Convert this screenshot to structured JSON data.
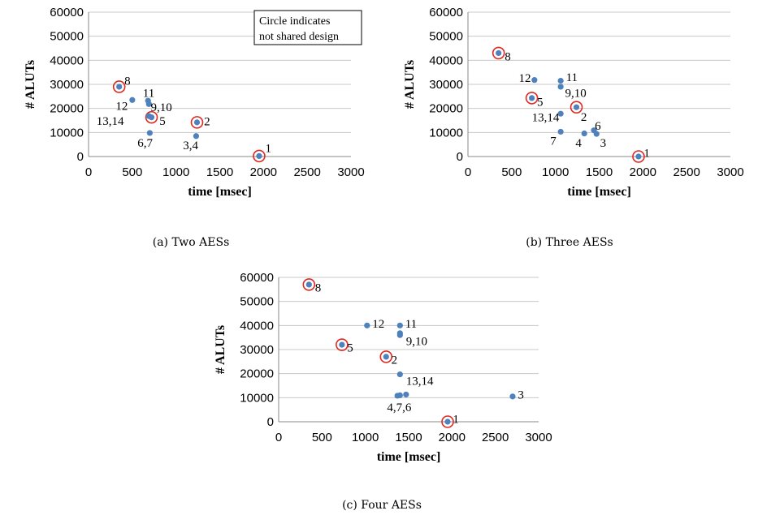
{
  "chart_data": [
    {
      "type": "scatter",
      "caption": "(a) Two AESs",
      "xlabel": "time [msec]",
      "ylabel": "# ALUTs",
      "xlim": [
        0,
        3000
      ],
      "ylim": [
        0,
        60000
      ],
      "xticks": [
        0,
        500,
        1000,
        1500,
        2000,
        2500,
        3000
      ],
      "yticks": [
        0,
        10000,
        20000,
        30000,
        40000,
        50000,
        60000
      ],
      "grid": "horizontal",
      "annotation": [
        "Circle indicates",
        "not shared design"
      ],
      "point_color": "#4f81bd",
      "circle_color": "#e0281e",
      "points": [
        {
          "x": 1950,
          "y": 200,
          "circled": true
        },
        {
          "x": 1240,
          "y": 14200,
          "circled": true
        },
        {
          "x": 1230,
          "y": 8500,
          "circled": false
        },
        {
          "x": 720,
          "y": 16300,
          "circled": true
        },
        {
          "x": 700,
          "y": 9800,
          "circled": false
        },
        {
          "x": 350,
          "y": 29000,
          "circled": true
        },
        {
          "x": 680,
          "y": 23200,
          "circled": false
        },
        {
          "x": 690,
          "y": 21800,
          "circled": false
        },
        {
          "x": 500,
          "y": 23500,
          "circled": false
        },
        {
          "x": 690,
          "y": 16800,
          "circled": false
        }
      ],
      "labels": [
        {
          "text": "1",
          "x": 2020,
          "y": 3500
        },
        {
          "text": "2",
          "x": 1320,
          "y": 14600
        },
        {
          "text": "3,4",
          "x": 1080,
          "y": 4800
        },
        {
          "text": "5",
          "x": 810,
          "y": 14800
        },
        {
          "text": "6,7",
          "x": 560,
          "y": 5800
        },
        {
          "text": "8",
          "x": 410,
          "y": 31500
        },
        {
          "text": "11",
          "x": 620,
          "y": 26500
        },
        {
          "text": "9,10",
          "x": 710,
          "y": 20600
        },
        {
          "text": "12",
          "x": 310,
          "y": 21000
        },
        {
          "text": "13,14",
          "x": 90,
          "y": 14800
        }
      ]
    },
    {
      "type": "scatter",
      "caption": "(b) Three AESs",
      "xlabel": "time [msec]",
      "ylabel": "# ALUTs",
      "xlim": [
        0,
        3000
      ],
      "ylim": [
        0,
        60000
      ],
      "xticks": [
        0,
        500,
        1000,
        1500,
        2000,
        2500,
        3000
      ],
      "yticks": [
        0,
        10000,
        20000,
        30000,
        40000,
        50000,
        60000
      ],
      "grid": "horizontal",
      "point_color": "#4f81bd",
      "circle_color": "#e0281e",
      "points": [
        {
          "x": 1950,
          "y": 0,
          "circled": true
        },
        {
          "x": 1240,
          "y": 20500,
          "circled": true
        },
        {
          "x": 1470,
          "y": 9400,
          "circled": false
        },
        {
          "x": 1330,
          "y": 9600,
          "circled": false
        },
        {
          "x": 730,
          "y": 24300,
          "circled": true
        },
        {
          "x": 1440,
          "y": 10900,
          "circled": false
        },
        {
          "x": 1060,
          "y": 10300,
          "circled": false
        },
        {
          "x": 350,
          "y": 43000,
          "circled": true
        },
        {
          "x": 1060,
          "y": 31500,
          "circled": false
        },
        {
          "x": 1060,
          "y": 29000,
          "circled": false
        },
        {
          "x": 760,
          "y": 31800,
          "circled": false
        },
        {
          "x": 1060,
          "y": 17800,
          "circled": false
        }
      ],
      "labels": [
        {
          "text": "1",
          "x": 2010,
          "y": 1500
        },
        {
          "text": "2",
          "x": 1290,
          "y": 16500
        },
        {
          "text": "3",
          "x": 1510,
          "y": 5800
        },
        {
          "text": "4",
          "x": 1230,
          "y": 5800
        },
        {
          "text": "5",
          "x": 790,
          "y": 22800
        },
        {
          "text": "6",
          "x": 1450,
          "y": 12800
        },
        {
          "text": "7",
          "x": 940,
          "y": 6600
        },
        {
          "text": "8",
          "x": 420,
          "y": 41600
        },
        {
          "text": "11",
          "x": 1120,
          "y": 33000
        },
        {
          "text": "9,10",
          "x": 1110,
          "y": 26400
        },
        {
          "text": "12",
          "x": 580,
          "y": 32700
        },
        {
          "text": "13,14",
          "x": 730,
          "y": 16300
        }
      ]
    },
    {
      "type": "scatter",
      "caption": "(c) Four AESs",
      "xlabel": "time [msec]",
      "ylabel": "# ALUTs",
      "xlim": [
        0,
        3000
      ],
      "ylim": [
        0,
        60000
      ],
      "xticks": [
        0,
        500,
        1000,
        1500,
        2000,
        2500,
        3000
      ],
      "yticks": [
        0,
        10000,
        20000,
        30000,
        40000,
        50000,
        60000
      ],
      "grid": "horizontal",
      "point_color": "#4f81bd",
      "circle_color": "#e0281e",
      "points": [
        {
          "x": 1950,
          "y": 0,
          "circled": true
        },
        {
          "x": 1240,
          "y": 27000,
          "circled": true
        },
        {
          "x": 2700,
          "y": 10500,
          "circled": false
        },
        {
          "x": 1370,
          "y": 10800,
          "circled": false
        },
        {
          "x": 1400,
          "y": 11000,
          "circled": false
        },
        {
          "x": 1470,
          "y": 11300,
          "circled": false
        },
        {
          "x": 730,
          "y": 32000,
          "circled": true
        },
        {
          "x": 350,
          "y": 57000,
          "circled": true
        },
        {
          "x": 1400,
          "y": 40000,
          "circled": false
        },
        {
          "x": 1400,
          "y": 36800,
          "circled": false
        },
        {
          "x": 1400,
          "y": 36000,
          "circled": false
        },
        {
          "x": 1020,
          "y": 40000,
          "circled": false
        },
        {
          "x": 1400,
          "y": 19700,
          "circled": false
        }
      ],
      "labels": [
        {
          "text": "1",
          "x": 2010,
          "y": 1200
        },
        {
          "text": "2",
          "x": 1300,
          "y": 25800
        },
        {
          "text": "3",
          "x": 2760,
          "y": 11300
        },
        {
          "text": "4,7,6",
          "x": 1250,
          "y": 6100
        },
        {
          "text": "5",
          "x": 790,
          "y": 30800
        },
        {
          "text": "8",
          "x": 420,
          "y": 55800
        },
        {
          "text": "11",
          "x": 1460,
          "y": 40800
        },
        {
          "text": "9,10",
          "x": 1470,
          "y": 33500
        },
        {
          "text": "12",
          "x": 1080,
          "y": 40800
        },
        {
          "text": "13,14",
          "x": 1470,
          "y": 17000
        }
      ]
    }
  ]
}
